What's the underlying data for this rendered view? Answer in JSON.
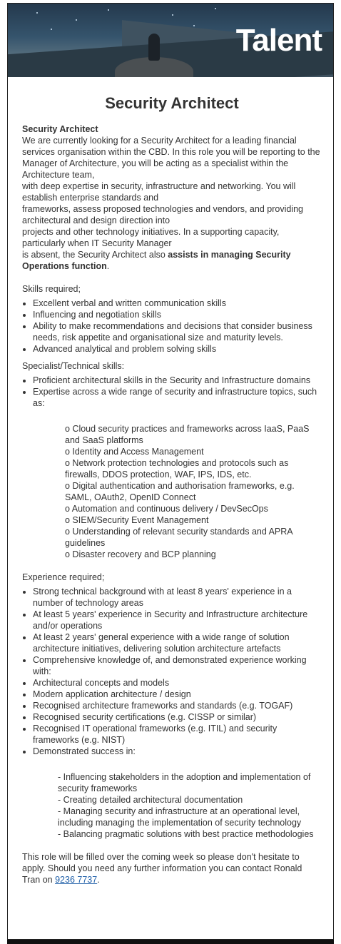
{
  "header": {
    "logo_text": "Talent",
    "accent": "#1f5fa8"
  },
  "job": {
    "title": "Security Architect",
    "intro_heading": "Security Architect",
    "intro_lines": [
      "We are currently looking for a Security Architect for a leading financial services organisation within the CBD. In this role you will be reporting to the Manager of Architecture, you will be acting as a specialist within the Architecture team,",
      "with deep expertise in security, infrastructure and networking. You will establish enterprise standards and",
      "frameworks, assess proposed technologies and vendors, and providing architectural and design direction into",
      "projects and other technology initiatives. In a supporting capacity, particularly when IT Security Manager"
    ],
    "intro_last_prefix": "is absent, the Security Architect also ",
    "intro_last_bold": "assists in managing Security Operations function",
    "intro_last_suffix": ".",
    "skills_heading": "Skills required;",
    "skills": [
      "Excellent verbal and written communication skills",
      "Influencing and negotiation skills",
      "Ability to make recommendations and decisions that consider business needs, risk appetite and organisational size and maturity levels.",
      "Advanced analytical and problem solving skills"
    ],
    "specialist_heading": "Specialist/Technical skills:",
    "specialist": [
      "Proficient architectural skills in the Security and Infrastructure domains",
      "Expertise across a wide range of security and infrastructure topics, such as:"
    ],
    "topics": [
      "o Cloud security practices and frameworks across IaaS, PaaS and SaaS platforms",
      "o Identity and Access Management",
      "o Network protection technologies and protocols such as firewalls, DDOS protection, WAF, IPS, IDS, etc.",
      "o Digital authentication and authorisation frameworks, e.g. SAML, OAuth2, OpenID Connect",
      "o Automation and continuous delivery / DevSecOps",
      "o SIEM/Security Event Management",
      "o Understanding of relevant security standards and APRA guidelines",
      "o Disaster recovery and BCP planning"
    ],
    "experience_heading": "Experience required;",
    "experience": [
      "Strong technical background with at least 8 years' experience in a number of technology areas",
      "At least 5 years' experience in Security and Infrastructure architecture and/or operations",
      "At least 2 years' general experience with a wide range of solution architecture initiatives, delivering solution architecture artefacts",
      "Comprehensive knowledge of, and demonstrated experience working with:",
      "Architectural concepts and models",
      "Modern application architecture / design",
      "Recognised architecture frameworks and standards (e.g. TOGAF)",
      "Recognised security certifications (e.g. CISSP or similar)",
      "Recognised IT operational frameworks (e.g. ITIL) and security frameworks (e.g. NIST)",
      "Demonstrated success in:"
    ],
    "success": [
      "- Influencing stakeholders in the adoption and implementation of security frameworks",
      "- Creating detailed architectural documentation",
      "- Managing security and infrastructure at an operational level, including managing the implementation of security technology",
      "- Balancing pragmatic solutions with best practice methodologies"
    ],
    "closing_text": "This role will be filled over the coming week so please don't hesitate to apply. Should you need any further information you can contact Ronald Tran on ",
    "phone": "9236 7737",
    "closing_end": "."
  }
}
